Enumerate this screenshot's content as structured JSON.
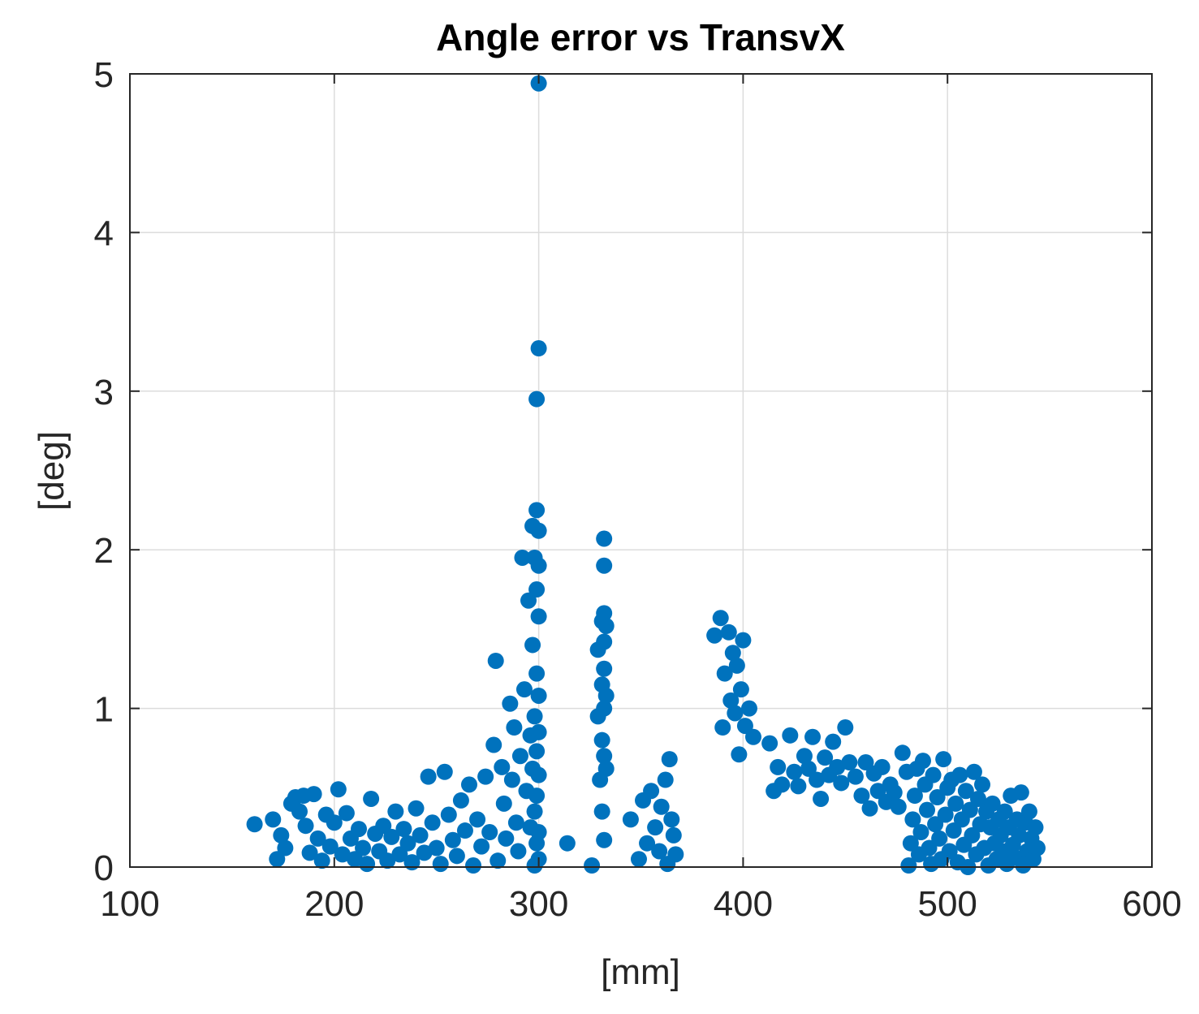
{
  "chart_data": {
    "type": "scatter",
    "title": "Angle error vs TransvX",
    "xlabel": "[mm]",
    "ylabel": "[deg]",
    "xlim": [
      100,
      600
    ],
    "ylim": [
      0,
      5
    ],
    "xticks": [
      100,
      200,
      300,
      400,
      500,
      600
    ],
    "yticks": [
      0,
      1,
      2,
      3,
      4,
      5
    ],
    "grid": true,
    "legend": "none",
    "marker_color": "#0072BD",
    "series": [
      {
        "points": [
          [
            161,
            0.27
          ],
          [
            170,
            0.3
          ],
          [
            172,
            0.05
          ],
          [
            174,
            0.2
          ],
          [
            176,
            0.12
          ],
          [
            179,
            0.4
          ],
          [
            181,
            0.44
          ],
          [
            183,
            0.35
          ],
          [
            185,
            0.45
          ],
          [
            186,
            0.26
          ],
          [
            188,
            0.09
          ],
          [
            190,
            0.46
          ],
          [
            192,
            0.18
          ],
          [
            194,
            0.04
          ],
          [
            196,
            0.33
          ],
          [
            198,
            0.13
          ],
          [
            200,
            0.28
          ],
          [
            202,
            0.49
          ],
          [
            204,
            0.08
          ],
          [
            206,
            0.34
          ],
          [
            208,
            0.18
          ],
          [
            210,
            0.05
          ],
          [
            212,
            0.24
          ],
          [
            214,
            0.12
          ],
          [
            216,
            0.02
          ],
          [
            218,
            0.43
          ],
          [
            220,
            0.21
          ],
          [
            222,
            0.1
          ],
          [
            224,
            0.26
          ],
          [
            226,
            0.04
          ],
          [
            228,
            0.19
          ],
          [
            230,
            0.35
          ],
          [
            232,
            0.08
          ],
          [
            234,
            0.24
          ],
          [
            236,
            0.15
          ],
          [
            238,
            0.03
          ],
          [
            240,
            0.37
          ],
          [
            242,
            0.2
          ],
          [
            244,
            0.09
          ],
          [
            246,
            0.57
          ],
          [
            248,
            0.28
          ],
          [
            250,
            0.12
          ],
          [
            252,
            0.02
          ],
          [
            254,
            0.6
          ],
          [
            256,
            0.33
          ],
          [
            258,
            0.17
          ],
          [
            260,
            0.07
          ],
          [
            262,
            0.42
          ],
          [
            264,
            0.23
          ],
          [
            266,
            0.52
          ],
          [
            268,
            0.01
          ],
          [
            270,
            0.3
          ],
          [
            272,
            0.13
          ],
          [
            274,
            0.57
          ],
          [
            276,
            0.22
          ],
          [
            278,
            0.77
          ],
          [
            279,
            1.3
          ],
          [
            280,
            0.04
          ],
          [
            282,
            0.63
          ],
          [
            283,
            0.4
          ],
          [
            284,
            0.18
          ],
          [
            286,
            1.03
          ],
          [
            287,
            0.55
          ],
          [
            288,
            0.88
          ],
          [
            289,
            0.28
          ],
          [
            290,
            0.1
          ],
          [
            291,
            0.7
          ],
          [
            292,
            1.95
          ],
          [
            293,
            1.12
          ],
          [
            294,
            0.48
          ],
          [
            295,
            1.68
          ],
          [
            296,
            0.83
          ],
          [
            296,
            0.25
          ],
          [
            297,
            2.15
          ],
          [
            297,
            1.4
          ],
          [
            297,
            0.62
          ],
          [
            298,
            0.01
          ],
          [
            298,
            1.95
          ],
          [
            298,
            0.95
          ],
          [
            298,
            0.35
          ],
          [
            299,
            2.95
          ],
          [
            299,
            2.25
          ],
          [
            299,
            1.75
          ],
          [
            299,
            1.22
          ],
          [
            299,
            0.73
          ],
          [
            299,
            0.45
          ],
          [
            299,
            0.15
          ],
          [
            300,
            4.94
          ],
          [
            300,
            3.27
          ],
          [
            300,
            2.12
          ],
          [
            300,
            1.9
          ],
          [
            300,
            1.58
          ],
          [
            300,
            1.08
          ],
          [
            300,
            0.85
          ],
          [
            300,
            0.58
          ],
          [
            300,
            0.22
          ],
          [
            300,
            0.05
          ],
          [
            314,
            0.15
          ],
          [
            326,
            0.01
          ],
          [
            329,
            1.37
          ],
          [
            329,
            0.95
          ],
          [
            330,
            0.55
          ],
          [
            331,
            1.55
          ],
          [
            331,
            1.15
          ],
          [
            331,
            0.8
          ],
          [
            331,
            0.35
          ],
          [
            332,
            2.07
          ],
          [
            332,
            1.9
          ],
          [
            332,
            1.6
          ],
          [
            332,
            1.42
          ],
          [
            332,
            1.25
          ],
          [
            332,
            1.0
          ],
          [
            332,
            0.7
          ],
          [
            332,
            0.17
          ],
          [
            333,
            1.52
          ],
          [
            333,
            1.08
          ],
          [
            333,
            0.62
          ],
          [
            345,
            0.3
          ],
          [
            349,
            0.05
          ],
          [
            351,
            0.42
          ],
          [
            353,
            0.15
          ],
          [
            355,
            0.48
          ],
          [
            357,
            0.25
          ],
          [
            359,
            0.1
          ],
          [
            360,
            0.38
          ],
          [
            362,
            0.55
          ],
          [
            363,
            0.02
          ],
          [
            364,
            0.68
          ],
          [
            365,
            0.3
          ],
          [
            366,
            0.2
          ],
          [
            367,
            0.08
          ],
          [
            386,
            1.46
          ],
          [
            389,
            1.57
          ],
          [
            390,
            0.88
          ],
          [
            391,
            1.22
          ],
          [
            393,
            1.48
          ],
          [
            394,
            1.05
          ],
          [
            395,
            1.35
          ],
          [
            396,
            0.97
          ],
          [
            397,
            1.27
          ],
          [
            398,
            0.71
          ],
          [
            399,
            1.12
          ],
          [
            400,
            1.43
          ],
          [
            401,
            0.89
          ],
          [
            403,
            1.0
          ],
          [
            405,
            0.82
          ],
          [
            413,
            0.78
          ],
          [
            415,
            0.48
          ],
          [
            417,
            0.63
          ],
          [
            419,
            0.52
          ],
          [
            423,
            0.83
          ],
          [
            425,
            0.6
          ],
          [
            427,
            0.51
          ],
          [
            430,
            0.7
          ],
          [
            432,
            0.62
          ],
          [
            434,
            0.82
          ],
          [
            436,
            0.55
          ],
          [
            438,
            0.43
          ],
          [
            440,
            0.69
          ],
          [
            442,
            0.58
          ],
          [
            444,
            0.79
          ],
          [
            446,
            0.63
          ],
          [
            448,
            0.53
          ],
          [
            450,
            0.88
          ],
          [
            452,
            0.66
          ],
          [
            455,
            0.57
          ],
          [
            458,
            0.45
          ],
          [
            460,
            0.66
          ],
          [
            462,
            0.37
          ],
          [
            464,
            0.59
          ],
          [
            466,
            0.48
          ],
          [
            468,
            0.63
          ],
          [
            470,
            0.41
          ],
          [
            472,
            0.52
          ],
          [
            474,
            0.47
          ],
          [
            476,
            0.38
          ],
          [
            478,
            0.72
          ],
          [
            480,
            0.6
          ],
          [
            481,
            0.01
          ],
          [
            482,
            0.15
          ],
          [
            483,
            0.3
          ],
          [
            484,
            0.45
          ],
          [
            485,
            0.62
          ],
          [
            486,
            0.08
          ],
          [
            487,
            0.22
          ],
          [
            488,
            0.67
          ],
          [
            489,
            0.52
          ],
          [
            490,
            0.36
          ],
          [
            491,
            0.12
          ],
          [
            492,
            0.02
          ],
          [
            493,
            0.58
          ],
          [
            494,
            0.27
          ],
          [
            495,
            0.44
          ],
          [
            496,
            0.18
          ],
          [
            497,
            0.05
          ],
          [
            498,
            0.68
          ],
          [
            499,
            0.33
          ],
          [
            500,
            0.5
          ],
          [
            501,
            0.1
          ],
          [
            502,
            0.55
          ],
          [
            503,
            0.23
          ],
          [
            504,
            0.4
          ],
          [
            505,
            0.03
          ],
          [
            506,
            0.58
          ],
          [
            507,
            0.3
          ],
          [
            508,
            0.14
          ],
          [
            509,
            0.48
          ],
          [
            510,
            0.0
          ],
          [
            511,
            0.36
          ],
          [
            512,
            0.2
          ],
          [
            513,
            0.6
          ],
          [
            514,
            0.08
          ],
          [
            515,
            0.43
          ],
          [
            516,
            0.27
          ],
          [
            517,
            0.52
          ],
          [
            518,
            0.12
          ],
          [
            519,
            0.35
          ],
          [
            520,
            0.01
          ],
          [
            521,
            0.25
          ],
          [
            522,
            0.4
          ],
          [
            523,
            0.15
          ],
          [
            524,
            0.05
          ],
          [
            525,
            0.3
          ],
          [
            526,
            0.2
          ],
          [
            527,
            0.1
          ],
          [
            528,
            0.35
          ],
          [
            529,
            0.02
          ],
          [
            530,
            0.25
          ],
          [
            531,
            0.45
          ],
          [
            532,
            0.14
          ],
          [
            533,
            0.06
          ],
          [
            534,
            0.3
          ],
          [
            535,
            0.2
          ],
          [
            536,
            0.47
          ],
          [
            537,
            0.01
          ],
          [
            538,
            0.28
          ],
          [
            539,
            0.1
          ],
          [
            540,
            0.35
          ],
          [
            541,
            0.18
          ],
          [
            542,
            0.05
          ],
          [
            543,
            0.25
          ],
          [
            544,
            0.12
          ]
        ]
      }
    ]
  }
}
